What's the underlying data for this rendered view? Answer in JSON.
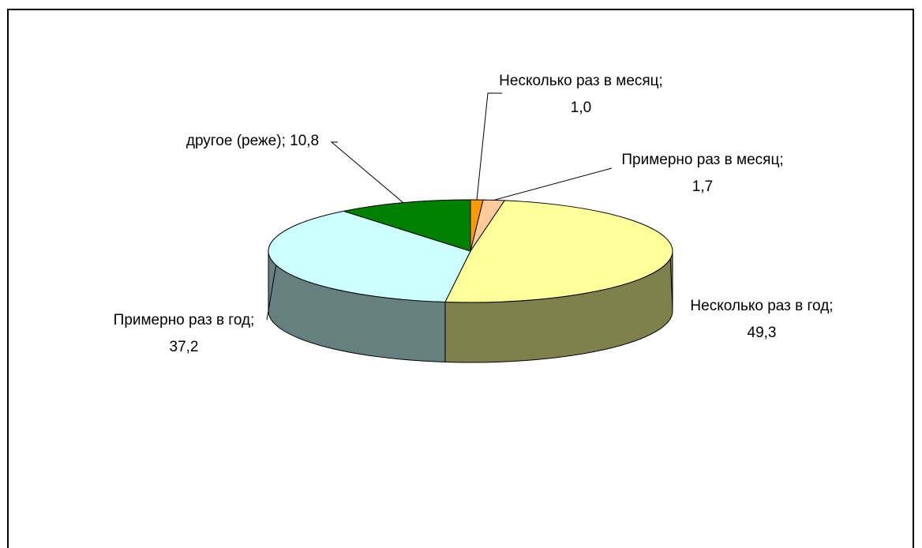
{
  "chart_data": {
    "type": "pie3d",
    "values": [
      1.0,
      1.7,
      49.3,
      37.2,
      10.8
    ],
    "value_labels": [
      "Несколько раз в месяц; 1,0",
      "Примерно раз в месяц; 1,7",
      "Несколько раз в год; 49,3",
      "Примерно раз в год; 37,2",
      "другое (реже); 10,8"
    ],
    "colors": [
      "#ff9900",
      "#ffcc99",
      "#ffff99",
      "#ccffff",
      "#008000"
    ]
  }
}
